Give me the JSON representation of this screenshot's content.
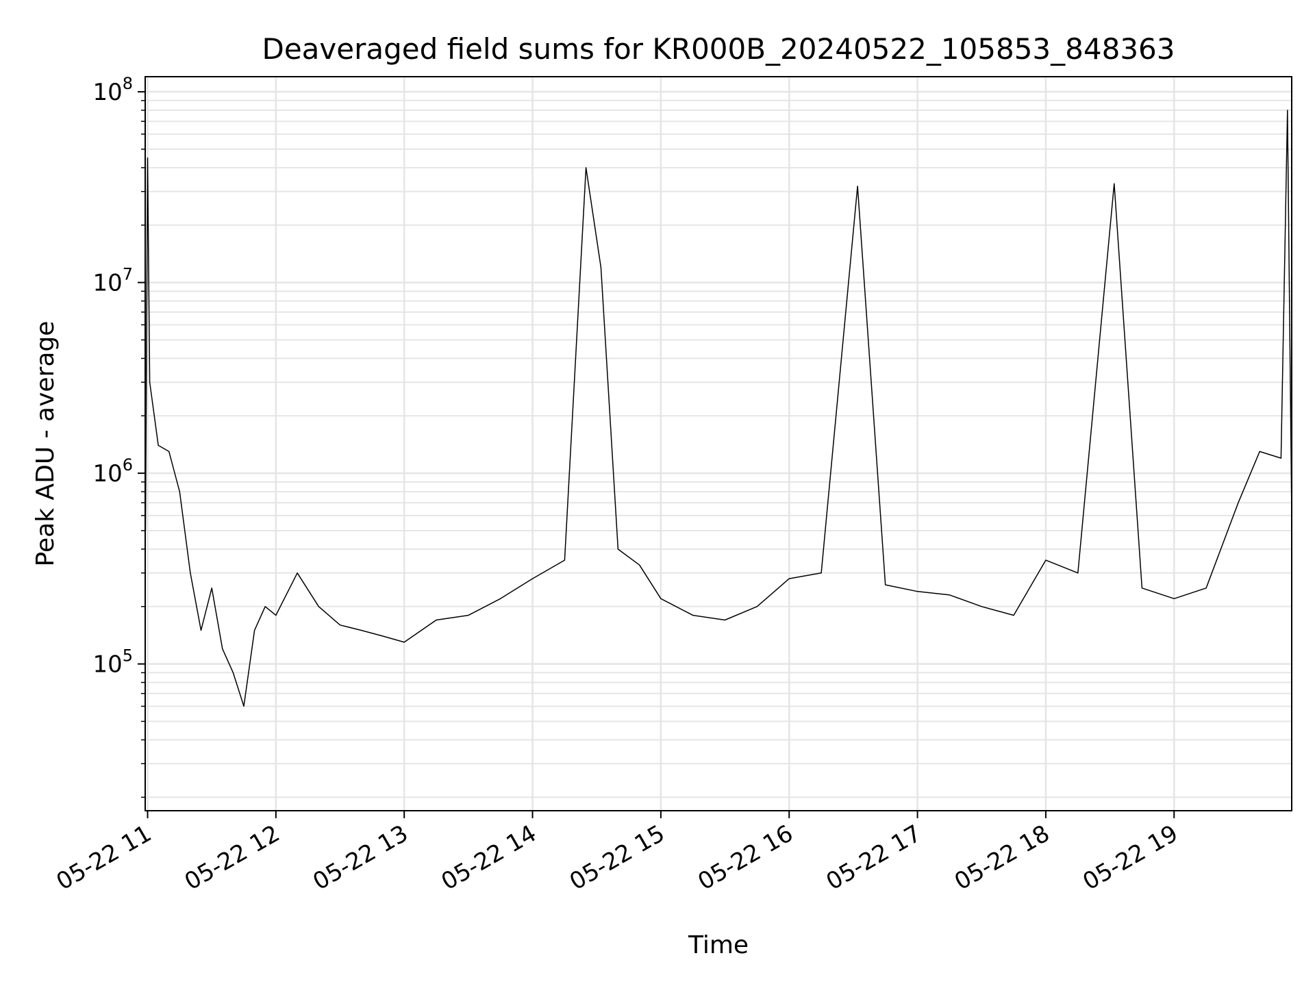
{
  "chart_data": {
    "type": "line",
    "title": "Deaveraged field sums for KR000B_20240522_105853_848363",
    "xlabel": "Time",
    "ylabel": "Peak ADU - average",
    "yscale": "log",
    "ylim": [
      17000,
      120000000
    ],
    "xlim": [
      "2024-05-22 10:58:53",
      "2024-05-22 19:55:00"
    ],
    "grid": true,
    "line_color": "#000000",
    "grid_color": "#e5e5e5",
    "x_ticks": [
      {
        "value": "2024-05-22 11:00",
        "label": "05-22 11"
      },
      {
        "value": "2024-05-22 12:00",
        "label": "05-22 12"
      },
      {
        "value": "2024-05-22 13:00",
        "label": "05-22 13"
      },
      {
        "value": "2024-05-22 14:00",
        "label": "05-22 14"
      },
      {
        "value": "2024-05-22 15:00",
        "label": "05-22 15"
      },
      {
        "value": "2024-05-22 16:00",
        "label": "05-22 16"
      },
      {
        "value": "2024-05-22 17:00",
        "label": "05-22 17"
      },
      {
        "value": "2024-05-22 18:00",
        "label": "05-22 18"
      },
      {
        "value": "2024-05-22 19:00",
        "label": "05-22 19"
      }
    ],
    "y_ticks": [
      {
        "value": 100000,
        "base": "10",
        "exp": "5"
      },
      {
        "value": 1000000,
        "base": "10",
        "exp": "6"
      },
      {
        "value": 10000000,
        "base": "10",
        "exp": "7"
      },
      {
        "value": 100000000,
        "base": "10",
        "exp": "8"
      }
    ],
    "series": [
      {
        "points": [
          [
            "2024-05-22 10:59",
            500000
          ],
          [
            "2024-05-22 11:00",
            45000000
          ],
          [
            "2024-05-22 11:01",
            3000000
          ],
          [
            "2024-05-22 11:05",
            1400000
          ],
          [
            "2024-05-22 11:10",
            1300000
          ],
          [
            "2024-05-22 11:15",
            800000
          ],
          [
            "2024-05-22 11:20",
            300000
          ],
          [
            "2024-05-22 11:25",
            150000
          ],
          [
            "2024-05-22 11:30",
            250000
          ],
          [
            "2024-05-22 11:35",
            120000
          ],
          [
            "2024-05-22 11:40",
            90000
          ],
          [
            "2024-05-22 11:45",
            60000
          ],
          [
            "2024-05-22 11:50",
            150000
          ],
          [
            "2024-05-22 11:55",
            200000
          ],
          [
            "2024-05-22 12:00",
            180000
          ],
          [
            "2024-05-22 12:10",
            300000
          ],
          [
            "2024-05-22 12:20",
            200000
          ],
          [
            "2024-05-22 12:30",
            160000
          ],
          [
            "2024-05-22 12:40",
            150000
          ],
          [
            "2024-05-22 12:50",
            140000
          ],
          [
            "2024-05-22 13:00",
            130000
          ],
          [
            "2024-05-22 13:15",
            170000
          ],
          [
            "2024-05-22 13:30",
            180000
          ],
          [
            "2024-05-22 13:45",
            220000
          ],
          [
            "2024-05-22 14:00",
            280000
          ],
          [
            "2024-05-22 14:15",
            350000
          ],
          [
            "2024-05-22 14:25",
            40000000
          ],
          [
            "2024-05-22 14:32",
            12000000
          ],
          [
            "2024-05-22 14:40",
            400000
          ],
          [
            "2024-05-22 14:50",
            330000
          ],
          [
            "2024-05-22 15:00",
            220000
          ],
          [
            "2024-05-22 15:15",
            180000
          ],
          [
            "2024-05-22 15:30",
            170000
          ],
          [
            "2024-05-22 15:45",
            200000
          ],
          [
            "2024-05-22 16:00",
            280000
          ],
          [
            "2024-05-22 16:15",
            300000
          ],
          [
            "2024-05-22 16:32",
            32000000
          ],
          [
            "2024-05-22 16:45",
            260000
          ],
          [
            "2024-05-22 17:00",
            240000
          ],
          [
            "2024-05-22 17:15",
            230000
          ],
          [
            "2024-05-22 17:30",
            200000
          ],
          [
            "2024-05-22 17:45",
            180000
          ],
          [
            "2024-05-22 18:00",
            350000
          ],
          [
            "2024-05-22 18:15",
            300000
          ],
          [
            "2024-05-22 18:32",
            33000000
          ],
          [
            "2024-05-22 18:45",
            250000
          ],
          [
            "2024-05-22 19:00",
            220000
          ],
          [
            "2024-05-22 19:15",
            250000
          ],
          [
            "2024-05-22 19:30",
            700000
          ],
          [
            "2024-05-22 19:40",
            1300000
          ],
          [
            "2024-05-22 19:50",
            1200000
          ],
          [
            "2024-05-22 19:53",
            80000000
          ],
          [
            "2024-05-22 19:55",
            600000
          ]
        ]
      }
    ]
  }
}
